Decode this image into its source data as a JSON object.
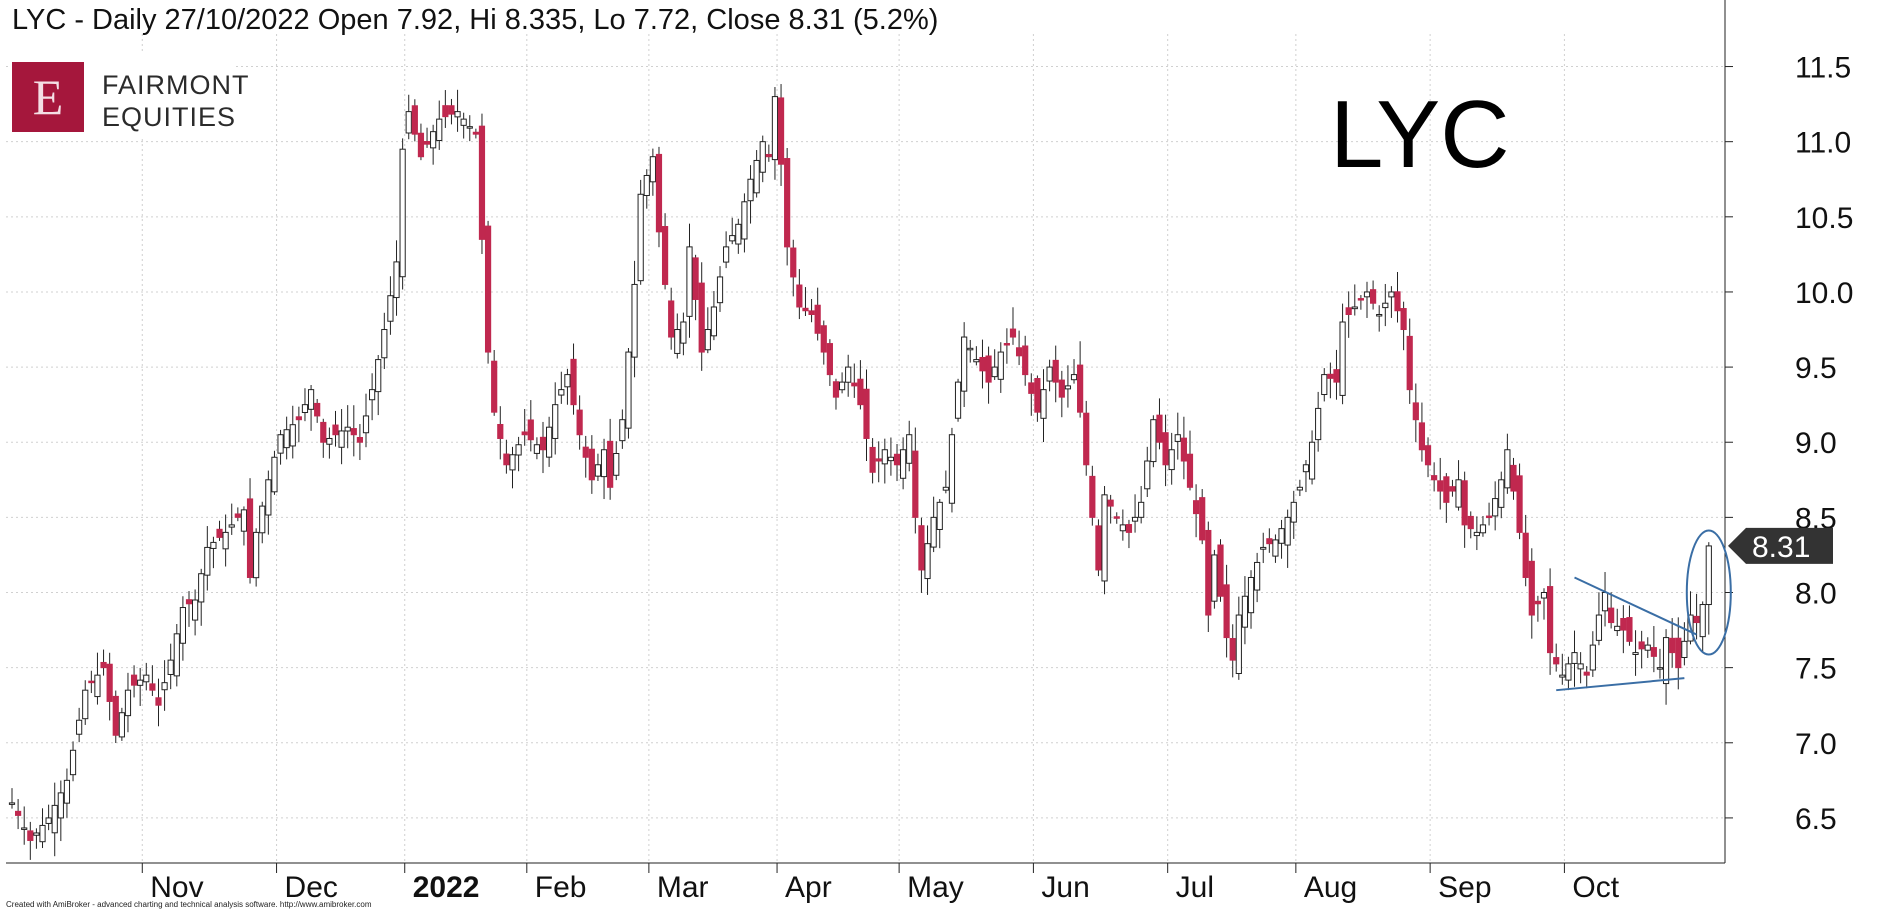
{
  "header": {
    "title": "LYC - Daily 27/10/2022 Open 7.92, Hi 8.335, Lo 7.72, Close 8.31 (5.2%)"
  },
  "logo": {
    "letter": "E",
    "line1": "FAIRMONT",
    "line2": "EQUITIES",
    "color": "#a5173c"
  },
  "ticker_label": "LYC",
  "footer": "Created with AmiBroker - advanced charting and technical analysis software. http://www.amibroker.com",
  "last_price_label": "8.31",
  "colors": {
    "up": "#ffffff",
    "down": "#c0284f",
    "outline": "#222222",
    "annotation": "#3a6ea5",
    "grid": "#d0d0d0"
  },
  "chart_data": {
    "type": "candlestick",
    "title": "LYC - Daily 27/10/2022 Open 7.92, Hi 8.335, Lo 7.72, Close 8.31 (5.2%)",
    "ylim": [
      6.2,
      11.65
    ],
    "y_ticks": [
      "11.5",
      "11.0",
      "10.5",
      "10.0",
      "9.5",
      "9.0",
      "8.5",
      "8.0",
      "7.5",
      "7.0",
      "6.5"
    ],
    "x_ticks": [
      {
        "label": "Nov",
        "index": 22,
        "bold": false
      },
      {
        "label": "Dec",
        "index": 44,
        "bold": false
      },
      {
        "label": "2022",
        "index": 65,
        "bold": true
      },
      {
        "label": "Feb",
        "index": 85,
        "bold": false
      },
      {
        "label": "Mar",
        "index": 105,
        "bold": false
      },
      {
        "label": "Apr",
        "index": 126,
        "bold": false
      },
      {
        "label": "May",
        "index": 146,
        "bold": false
      },
      {
        "label": "Jun",
        "index": 168,
        "bold": false
      },
      {
        "label": "Jul",
        "index": 190,
        "bold": false
      },
      {
        "label": "Aug",
        "index": 211,
        "bold": false
      },
      {
        "label": "Sep",
        "index": 233,
        "bold": false
      },
      {
        "label": "Oct",
        "index": 255,
        "bold": false
      }
    ],
    "last_close": 8.31,
    "anchors": [
      [
        0,
        6.6
      ],
      [
        3,
        6.35
      ],
      [
        6,
        6.5
      ],
      [
        9,
        6.75
      ],
      [
        12,
        7.35
      ],
      [
        15,
        7.5
      ],
      [
        17,
        7.05
      ],
      [
        19,
        7.35
      ],
      [
        22,
        7.45
      ],
      [
        24,
        7.25
      ],
      [
        26,
        7.55
      ],
      [
        28,
        7.9
      ],
      [
        30,
        7.95
      ],
      [
        32,
        8.3
      ],
      [
        35,
        8.4
      ],
      [
        38,
        8.55
      ],
      [
        39,
        8.1
      ],
      [
        40,
        8.4
      ],
      [
        42,
        8.75
      ],
      [
        44,
        9.05
      ],
      [
        47,
        9.15
      ],
      [
        49,
        9.35
      ],
      [
        51,
        9.0
      ],
      [
        55,
        9.1
      ],
      [
        57,
        9.0
      ],
      [
        59,
        9.35
      ],
      [
        61,
        9.75
      ],
      [
        63,
        10.2
      ],
      [
        64,
        10.95
      ],
      [
        65,
        11.2
      ],
      [
        67,
        10.9
      ],
      [
        70,
        11.15
      ],
      [
        73,
        11.2
      ],
      [
        76,
        11.05
      ],
      [
        77,
        10.35
      ],
      [
        78,
        9.6
      ],
      [
        79,
        9.2
      ],
      [
        81,
        8.85
      ],
      [
        84,
        9.05
      ],
      [
        87,
        8.95
      ],
      [
        89,
        9.25
      ],
      [
        91,
        9.45
      ],
      [
        93,
        9.05
      ],
      [
        95,
        8.75
      ],
      [
        97,
        8.95
      ],
      [
        98,
        8.7
      ],
      [
        100,
        9.15
      ],
      [
        101,
        9.6
      ],
      [
        102,
        10.05
      ],
      [
        103,
        10.65
      ],
      [
        105,
        10.9
      ],
      [
        106,
        10.4
      ],
      [
        108,
        9.7
      ],
      [
        110,
        9.8
      ],
      [
        111,
        10.3
      ],
      [
        113,
        9.6
      ],
      [
        115,
        9.9
      ],
      [
        117,
        10.3
      ],
      [
        119,
        10.45
      ],
      [
        121,
        10.75
      ],
      [
        123,
        11.0
      ],
      [
        124,
        10.9
      ],
      [
        125,
        11.3
      ],
      [
        126,
        10.85
      ],
      [
        127,
        10.3
      ],
      [
        129,
        9.9
      ],
      [
        131,
        9.85
      ],
      [
        133,
        9.6
      ],
      [
        135,
        9.3
      ],
      [
        137,
        9.5
      ],
      [
        139,
        9.25
      ],
      [
        141,
        8.8
      ],
      [
        143,
        8.95
      ],
      [
        145,
        8.85
      ],
      [
        147,
        9.05
      ],
      [
        148,
        8.5
      ],
      [
        149,
        8.15
      ],
      [
        151,
        8.5
      ],
      [
        153,
        8.7
      ],
      [
        155,
        9.4
      ],
      [
        156,
        9.7
      ],
      [
        158,
        9.55
      ],
      [
        160,
        9.4
      ],
      [
        162,
        9.6
      ],
      [
        164,
        9.7
      ],
      [
        166,
        9.45
      ],
      [
        168,
        9.2
      ],
      [
        170,
        9.5
      ],
      [
        172,
        9.3
      ],
      [
        174,
        9.45
      ],
      [
        175,
        9.2
      ],
      [
        177,
        8.5
      ],
      [
        178,
        8.15
      ],
      [
        179,
        8.65
      ],
      [
        181,
        8.5
      ],
      [
        183,
        8.4
      ],
      [
        185,
        8.6
      ],
      [
        187,
        9.15
      ],
      [
        189,
        8.85
      ],
      [
        191,
        9.05
      ],
      [
        193,
        8.7
      ],
      [
        195,
        8.35
      ],
      [
        196,
        7.85
      ],
      [
        197,
        8.25
      ],
      [
        199,
        7.7
      ],
      [
        200,
        7.55
      ],
      [
        201,
        7.85
      ],
      [
        203,
        8.1
      ],
      [
        205,
        8.3
      ],
      [
        207,
        8.35
      ],
      [
        209,
        8.5
      ],
      [
        211,
        8.7
      ],
      [
        213,
        9.0
      ],
      [
        215,
        9.45
      ],
      [
        217,
        9.4
      ],
      [
        218,
        9.8
      ],
      [
        220,
        9.9
      ],
      [
        222,
        10.0
      ],
      [
        224,
        9.85
      ],
      [
        226,
        10.0
      ],
      [
        228,
        9.75
      ],
      [
        229,
        9.35
      ],
      [
        231,
        8.95
      ],
      [
        233,
        8.75
      ],
      [
        235,
        8.6
      ],
      [
        237,
        8.75
      ],
      [
        238,
        8.45
      ],
      [
        240,
        8.4
      ],
      [
        242,
        8.5
      ],
      [
        244,
        8.75
      ],
      [
        245,
        8.95
      ],
      [
        247,
        8.4
      ],
      [
        248,
        8.1
      ],
      [
        249,
        7.85
      ],
      [
        251,
        8.0
      ],
      [
        252,
        7.6
      ],
      [
        254,
        7.45
      ],
      [
        256,
        7.6
      ],
      [
        258,
        7.45
      ],
      [
        260,
        7.85
      ],
      [
        261,
        8.0
      ],
      [
        262,
        7.8
      ],
      [
        264,
        7.75
      ],
      [
        266,
        7.6
      ],
      [
        268,
        7.65
      ],
      [
        270,
        7.5
      ],
      [
        271,
        7.7
      ],
      [
        273,
        7.5
      ],
      [
        275,
        7.85
      ],
      [
        276,
        7.8
      ],
      [
        277,
        7.92
      ],
      [
        278,
        8.31
      ]
    ],
    "pennant": {
      "upper": [
        [
          256,
          8.1
        ],
        [
          276,
          7.72
        ]
      ],
      "lower": [
        [
          253,
          7.35
        ],
        [
          274,
          7.43
        ]
      ]
    },
    "circle_target": [
      278,
      8.0
    ]
  }
}
